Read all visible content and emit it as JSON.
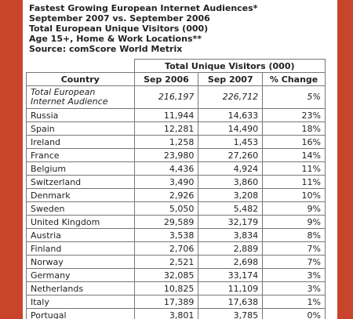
{
  "header": {
    "lines": [
      "Fastest Growing European Internet Audiences*",
      "September 2007 vs. September 2006",
      "Total European Unique Visitors (000)",
      "Age 15+, Home & Work Locations**",
      "Source: comScore World Metrix"
    ]
  },
  "table": {
    "group_header": "Total Unique Visitors (000)",
    "columns": [
      "Country",
      "Sep 2006",
      "Sep 2007",
      "% Change"
    ],
    "rows": [
      [
        "Total European Internet Audience",
        "216,197",
        "226,712",
        "5%"
      ],
      [
        "Russia",
        "11,944",
        "14,633",
        "23%"
      ],
      [
        "Spain",
        "12,281",
        "14,490",
        "18%"
      ],
      [
        "Ireland",
        "1,258",
        "1,453",
        "16%"
      ],
      [
        "France",
        "23,980",
        "27,260",
        "14%"
      ],
      [
        "Belgium",
        "4,436",
        "4,924",
        "11%"
      ],
      [
        "Switzerland",
        "3,490",
        "3,860",
        "11%"
      ],
      [
        "Denmark",
        "2,926",
        "3,208",
        "10%"
      ],
      [
        "Sweden",
        "5,050",
        "5,482",
        "9%"
      ],
      [
        "United Kingdom",
        "29,589",
        "32,179",
        "9%"
      ],
      [
        "Austria",
        "3,538",
        "3,834",
        "8%"
      ],
      [
        "Finland",
        "2,706",
        "2,889",
        "7%"
      ],
      [
        "Norway",
        "2,521",
        "2,698",
        "7%"
      ],
      [
        "Germany",
        "32,085",
        "33,174",
        "3%"
      ],
      [
        "Netherlands",
        "10,825",
        "11,109",
        "3%"
      ],
      [
        "Italy",
        "17,389",
        "17,638",
        "1%"
      ],
      [
        "Portugal",
        "3,801",
        "3,785",
        "0%"
      ]
    ]
  }
}
